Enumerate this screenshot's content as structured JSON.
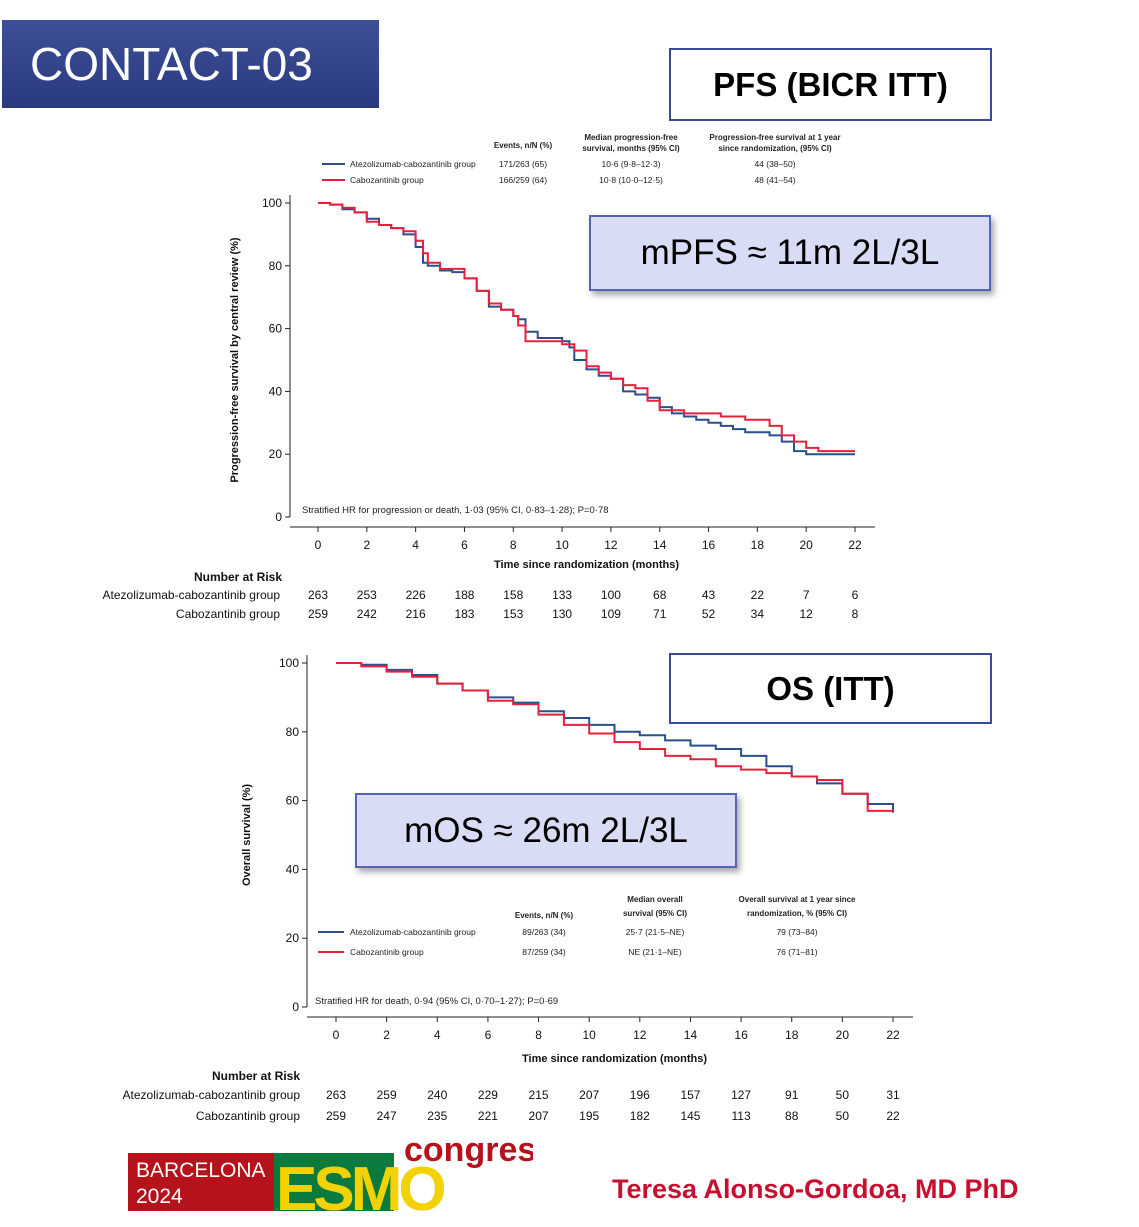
{
  "title": "CONTACT-03",
  "pfs_label": "PFS (BICR ITT)",
  "os_label": "OS (ITT)",
  "pfs_callout": "mPFS ≈ 11m 2L/3L",
  "os_callout": "mOS ≈ 26m 2L/3L",
  "author": "Teresa Alonso-Gordoa, MD PhD",
  "logo": {
    "city": "BARCELONA",
    "year": "2024",
    "brand": "ESMO",
    "word": "congress"
  },
  "colors": {
    "atezo": "#2b4e8c",
    "cabo": "#e8203c",
    "title_bg": "#33448c",
    "callout_bg": "#d8dcf5",
    "author": "#c8102e"
  },
  "chart_data": [
    {
      "type": "line",
      "id": "pfs",
      "xlabel": "Time since randomization (months)",
      "ylabel": "Progression-free survival by central review (%)",
      "xlim": [
        0,
        22
      ],
      "ylim": [
        0,
        100
      ],
      "x_ticks": [
        "0",
        "2",
        "4",
        "6",
        "8",
        "10",
        "12",
        "14",
        "16",
        "18",
        "20",
        "22"
      ],
      "y_ticks": [
        "0",
        "20",
        "40",
        "60",
        "80",
        "100"
      ],
      "legend": {
        "headers": [
          "Events, n/N (%)",
          "Median progression-free survival, months (95% CI)",
          "Progression-free survival at 1 year since randomization, (95% CI)"
        ],
        "rows": [
          {
            "name": "Atezolizumab-cabozantinib group",
            "events": "171/263 (65)",
            "median": "10·6 (9·8–12·3)",
            "one_year": "44 (38–50)"
          },
          {
            "name": "Cabozantinib group",
            "events": "166/259 (64)",
            "median": "10·8 (10·0–12·5)",
            "one_year": "48 (41–54)"
          }
        ]
      },
      "annotation": "Stratified HR for progression or death, 1·03 (95% CI, 0·83–1·28); P=0·78",
      "series": [
        {
          "name": "Atezolizumab-cabozantinib group",
          "color": "#2b4e8c",
          "x": [
            0,
            0.5,
            1,
            1.5,
            2,
            2.5,
            3,
            3.5,
            4,
            4.3,
            4.5,
            5,
            5.5,
            6,
            6.5,
            7,
            7.5,
            8,
            8.2,
            8.5,
            9,
            9.5,
            10,
            10.3,
            10.5,
            11,
            11.5,
            12,
            12.5,
            13,
            13.5,
            14,
            14.5,
            15,
            15.5,
            16,
            16.5,
            17,
            17.5,
            18,
            18.5,
            19,
            19.5,
            20,
            20.5,
            21,
            22
          ],
          "y": [
            100,
            99.5,
            98,
            97,
            95,
            93,
            92,
            90,
            86,
            81,
            80,
            78.5,
            78,
            76,
            72,
            67,
            66,
            64,
            63,
            59,
            57,
            57,
            56,
            54,
            50,
            47,
            45,
            44,
            40,
            39,
            38,
            35,
            33,
            32,
            31,
            30,
            29,
            28,
            27,
            27,
            26,
            24,
            21,
            20,
            20,
            20,
            20
          ]
        },
        {
          "name": "Cabozantinib group",
          "color": "#e8203c",
          "x": [
            0,
            0.5,
            1,
            1.5,
            2,
            2.5,
            3,
            3.5,
            4,
            4.3,
            4.5,
            5,
            5.5,
            6,
            6.5,
            7,
            7.5,
            8,
            8.2,
            8.5,
            9,
            9.5,
            10,
            10.3,
            10.5,
            11,
            11.5,
            12,
            12.5,
            13,
            13.5,
            14,
            14.5,
            15,
            15.5,
            16,
            16.5,
            17,
            17.5,
            18,
            18.5,
            19,
            19.5,
            20,
            20.5,
            21,
            22
          ],
          "y": [
            100,
            99.5,
            98.5,
            97,
            94,
            93,
            92,
            91,
            88,
            84,
            81,
            79,
            79,
            76,
            72,
            68,
            66,
            64,
            61,
            56,
            56,
            56,
            55,
            55,
            53,
            48,
            46,
            44,
            42,
            41,
            37,
            34,
            34,
            33,
            33,
            33,
            32,
            32,
            31,
            31,
            29,
            26,
            24,
            22,
            21,
            21,
            21
          ]
        }
      ],
      "risk_table": {
        "header": "Number at Risk",
        "rows": [
          {
            "label": "Atezolizumab-cabozantinib group",
            "values": [
              "263",
              "253",
              "226",
              "188",
              "158",
              "133",
              "100",
              "68",
              "43",
              "22",
              "7",
              "6"
            ]
          },
          {
            "label": "Cabozantinib group",
            "values": [
              "259",
              "242",
              "216",
              "183",
              "153",
              "130",
              "109",
              "71",
              "52",
              "34",
              "12",
              "8"
            ]
          }
        ]
      }
    },
    {
      "type": "line",
      "id": "os",
      "xlabel": "Time since randomization (months)",
      "ylabel": "Overall survival (%)",
      "xlim": [
        0,
        22
      ],
      "ylim": [
        0,
        100
      ],
      "x_ticks": [
        "0",
        "2",
        "4",
        "6",
        "8",
        "10",
        "12",
        "14",
        "16",
        "18",
        "20",
        "22"
      ],
      "y_ticks": [
        "0",
        "20",
        "40",
        "60",
        "80",
        "100"
      ],
      "legend": {
        "headers": [
          "Events, n/N (%)",
          "Median overall survival (95% CI)",
          "Overall survival at 1 year since randomization, % (95% CI)"
        ],
        "rows": [
          {
            "name": "Atezolizumab-cabozantinib group",
            "events": "89/263 (34)",
            "median": "25·7 (21·5–NE)",
            "one_year": "79 (73–84)"
          },
          {
            "name": "Cabozantinib group",
            "events": "87/259 (34)",
            "median": "NE (21·1–NE)",
            "one_year": "76 (71–81)"
          }
        ]
      },
      "annotation": "Stratified HR for death, 0·94 (95% CI, 0·70–1·27); P=0·69",
      "series": [
        {
          "name": "Atezolizumab-cabozantinib group",
          "color": "#2b4e8c",
          "x": [
            0,
            1,
            2,
            3,
            4,
            5,
            6,
            7,
            8,
            9,
            10,
            11,
            12,
            13,
            14,
            15,
            16,
            17,
            18,
            19,
            20,
            21,
            22
          ],
          "y": [
            100,
            99.5,
            98,
            96.5,
            94,
            92,
            90,
            88.5,
            86,
            84,
            82,
            80,
            79,
            77.5,
            76,
            75,
            73,
            70,
            67,
            65,
            62,
            59,
            56.5
          ]
        },
        {
          "name": "Cabozantinib group",
          "color": "#e8203c",
          "x": [
            0,
            1,
            2,
            3,
            4,
            5,
            6,
            7,
            8,
            9,
            10,
            11,
            12,
            13,
            14,
            15,
            16,
            17,
            18,
            19,
            20,
            21,
            22
          ],
          "y": [
            100,
            99,
            97.5,
            96,
            94,
            92,
            89,
            88,
            85,
            82,
            79.5,
            77,
            75,
            73,
            72,
            70,
            69,
            68,
            67,
            66,
            62,
            57,
            56.5
          ]
        }
      ],
      "risk_table": {
        "header": "Number at Risk",
        "rows": [
          {
            "label": "Atezolizumab-cabozantinib group",
            "values": [
              "263",
              "259",
              "240",
              "229",
              "215",
              "207",
              "196",
              "157",
              "127",
              "91",
              "50",
              "31"
            ]
          },
          {
            "label": "Cabozantinib group",
            "values": [
              "259",
              "247",
              "235",
              "221",
              "207",
              "195",
              "182",
              "145",
              "113",
              "88",
              "50",
              "22"
            ]
          }
        ]
      }
    }
  ]
}
